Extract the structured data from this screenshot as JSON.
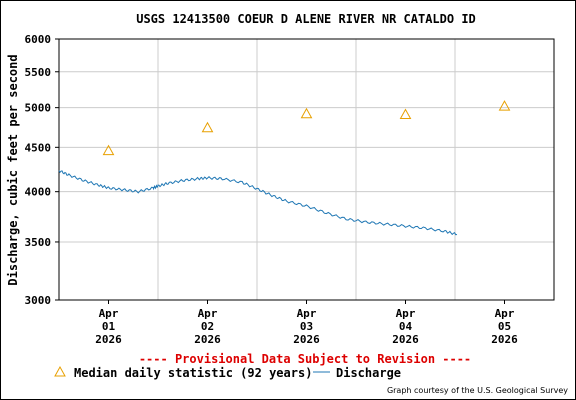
{
  "chart_data": {
    "type": "line",
    "title": "USGS 12413500 COEUR D ALENE RIVER NR CATALDO ID",
    "ylabel": "Discharge, cubic feet per second",
    "xlabel": "",
    "y_scale": "log",
    "ylim": [
      3000,
      6000
    ],
    "y_ticks": [
      3000,
      3500,
      4000,
      4500,
      5000,
      5500,
      6000
    ],
    "x_ticks": [
      {
        "day": 1,
        "lines": [
          "Apr",
          "01",
          "2026"
        ]
      },
      {
        "day": 2,
        "lines": [
          "Apr",
          "02",
          "2026"
        ]
      },
      {
        "day": 3,
        "lines": [
          "Apr",
          "03",
          "2026"
        ]
      },
      {
        "day": 4,
        "lines": [
          "Apr",
          "04",
          "2026"
        ]
      },
      {
        "day": 5,
        "lines": [
          "Apr",
          "05",
          "2026"
        ]
      }
    ],
    "xlim_days": [
      0.5,
      5.5
    ],
    "grid": true,
    "series": [
      {
        "name": "Discharge",
        "color": "#1f77b4",
        "kind": "line",
        "x_days": [
          0.5,
          0.6,
          0.75,
          0.9,
          1.0,
          1.15,
          1.3,
          1.45,
          1.5,
          1.6,
          1.75,
          1.9,
          2.0,
          2.15,
          2.35,
          2.5,
          2.65,
          2.8,
          3.0,
          3.2,
          3.4,
          3.6,
          3.8,
          4.0,
          4.2,
          4.4,
          4.52
        ],
        "values": [
          4230,
          4180,
          4120,
          4070,
          4040,
          4020,
          4000,
          4040,
          4060,
          4090,
          4120,
          4140,
          4150,
          4140,
          4100,
          4030,
          3960,
          3900,
          3850,
          3780,
          3720,
          3690,
          3670,
          3650,
          3630,
          3600,
          3570
        ]
      },
      {
        "name": "Median daily statistic (92 years)",
        "color": "#e8a000",
        "kind": "marker",
        "x_days": [
          1.0,
          2.0,
          3.0,
          4.0,
          5.0
        ],
        "values": [
          4460,
          4740,
          4920,
          4910,
          5020
        ]
      }
    ],
    "annotation": "---- Provisional Data Subject to Revision ----",
    "annotation_color": "#dd0000",
    "legend_placement": "bottom-left"
  },
  "credit": "Graph courtesy of the U.S. Geological Survey"
}
